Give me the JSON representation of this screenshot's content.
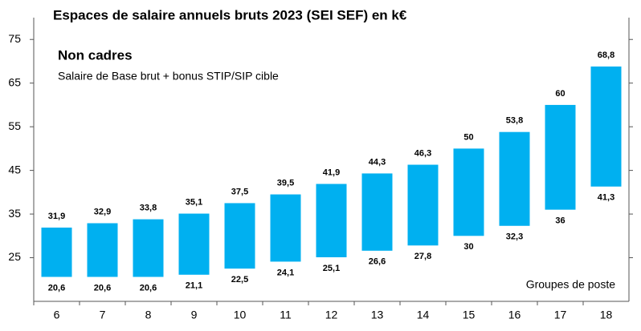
{
  "chart_data": {
    "type": "range-bar",
    "title": "Espaces de salaire annuels bruts 2023 (SEI SEF) en k€",
    "subtitle": "Non cadres",
    "note": "Salaire de Base brut + bonus STIP/SIP cible",
    "x_label": "Groupes de poste",
    "categories": [
      "6",
      "7",
      "8",
      "9",
      "10",
      "11",
      "12",
      "13",
      "14",
      "15",
      "16",
      "17",
      "18"
    ],
    "low": {
      "values": [
        20.6,
        20.6,
        20.6,
        21.1,
        22.5,
        24.1,
        25.1,
        26.6,
        27.8,
        30,
        32.3,
        36,
        41.3
      ],
      "value_labels": [
        "20,6",
        "20,6",
        "20,6",
        "21,1",
        "22,5",
        "24,1",
        "25,1",
        "26,6",
        "27,8",
        "30",
        "32,3",
        "36",
        "41,3"
      ]
    },
    "high": {
      "values": [
        31.9,
        32.9,
        33.8,
        35.1,
        37.5,
        39.5,
        41.9,
        44.3,
        46.3,
        50,
        53.8,
        60,
        68.8
      ],
      "value_labels": [
        "31,9",
        "32,9",
        "33,8",
        "35,1",
        "37,5",
        "39,5",
        "41,9",
        "44,3",
        "46,3",
        "50",
        "53,8",
        "60",
        "68,8"
      ]
    },
    "color": "#00b0f0",
    "ylim": [
      15,
      80
    ],
    "yticks": [
      25,
      35,
      45,
      55,
      65,
      75
    ]
  }
}
